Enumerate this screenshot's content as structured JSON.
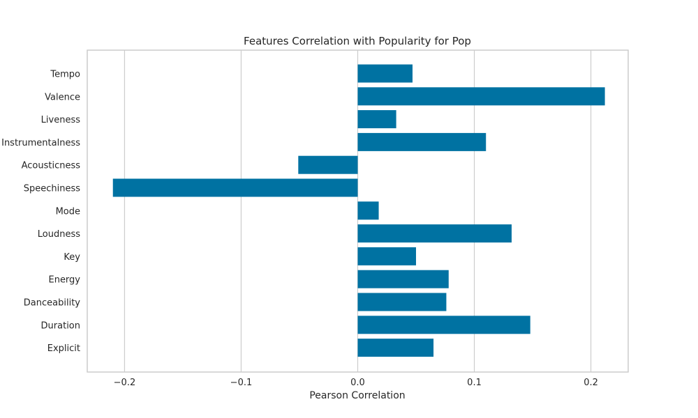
{
  "chart_data": {
    "type": "bar",
    "orientation": "horizontal",
    "title": "Features Correlation with Popularity for Pop",
    "xlabel": "Pearson Correlation",
    "ylabel": "",
    "xlim": [
      -0.232,
      0.232
    ],
    "xticks": [
      -0.2,
      -0.1,
      0.0,
      0.1,
      0.2
    ],
    "xtick_labels": [
      "−0.2",
      "−0.1",
      "0.0",
      "0.1",
      "0.2"
    ],
    "grid": true,
    "bar_color": "#0072a2",
    "categories": [
      "Tempo",
      "Valence",
      "Liveness",
      "Instrumentalness",
      "Acousticness",
      "Speechiness",
      "Mode",
      "Loudness",
      "Key",
      "Energy",
      "Danceability",
      "Duration",
      "Explicit"
    ],
    "values": [
      0.047,
      0.212,
      0.033,
      0.11,
      -0.051,
      -0.21,
      0.018,
      0.132,
      0.05,
      0.078,
      0.076,
      0.148,
      0.065
    ]
  }
}
